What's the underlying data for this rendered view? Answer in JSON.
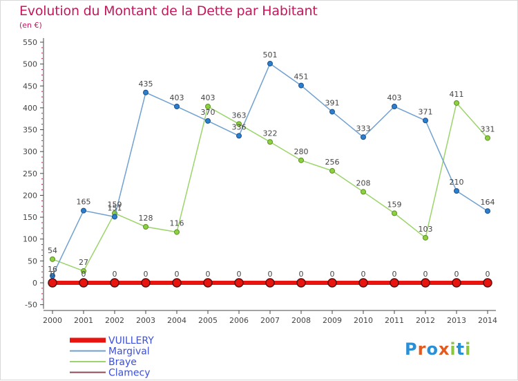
{
  "header": {
    "title": "Evolution du Montant de la Dette par Habitant",
    "unit": "(en €)"
  },
  "logo": {
    "letters": [
      "P",
      "r",
      "o",
      "x",
      "i",
      "t",
      "i"
    ],
    "colors": [
      "#2b8fd6",
      "#e6591e",
      "#2b8fd6",
      "#e6591e",
      "#8cc63f",
      "#2b8fd6",
      "#8cc63f"
    ]
  },
  "chart_data": {
    "type": "line",
    "x": [
      "2000",
      "2001",
      "2002",
      "2003",
      "2004",
      "2005",
      "2006",
      "2007",
      "2008",
      "2009",
      "2010",
      "2011",
      "2012",
      "2013",
      "2014"
    ],
    "ylim": [
      -50,
      550
    ],
    "yticks": [
      -50,
      0,
      50,
      100,
      150,
      200,
      250,
      300,
      350,
      400,
      450,
      500,
      550
    ],
    "grid": false,
    "legend_position": "bottom-left",
    "series": [
      {
        "name": "VUILLERY",
        "color": "#e8140f",
        "values": [
          0,
          0,
          0,
          0,
          0,
          0,
          0,
          0,
          0,
          0,
          0,
          0,
          0,
          0,
          0
        ],
        "labels": [
          "0",
          "0",
          "0",
          "0",
          "0",
          "0",
          "0",
          "0",
          "0",
          "0",
          "0",
          "0",
          "0",
          "0",
          "0"
        ]
      },
      {
        "name": "Margival",
        "color": "#6fa0d0",
        "values": [
          16,
          165,
          151,
          435,
          403,
          370,
          336,
          501,
          451,
          391,
          333,
          403,
          371,
          210,
          164
        ],
        "labels": [
          "16",
          "165",
          "151",
          "435",
          "403",
          "370",
          "336",
          "501",
          "451",
          "391",
          "333",
          "403",
          "371",
          "210",
          "164"
        ]
      },
      {
        "name": "Braye",
        "color": "#9bd46a",
        "values": [
          54,
          27,
          159,
          128,
          116,
          403,
          363,
          322,
          280,
          256,
          208,
          159,
          103,
          411,
          331
        ],
        "labels": [
          "54",
          "27",
          "159",
          "128",
          "116",
          "403",
          "363",
          "322",
          "280",
          "256",
          "208",
          "159",
          "103",
          "411",
          "331"
        ]
      },
      {
        "name": "Clamecy",
        "color": "#8a4a5a",
        "values": [
          0,
          0,
          0,
          0,
          0,
          0,
          0,
          0,
          0,
          0,
          0,
          0,
          0,
          0,
          0
        ],
        "labels": [
          "0",
          "0",
          "0",
          "0",
          "0",
          "0",
          "0",
          "0",
          "0",
          "0",
          "0",
          "0",
          "0",
          "0",
          "0"
        ]
      }
    ]
  }
}
